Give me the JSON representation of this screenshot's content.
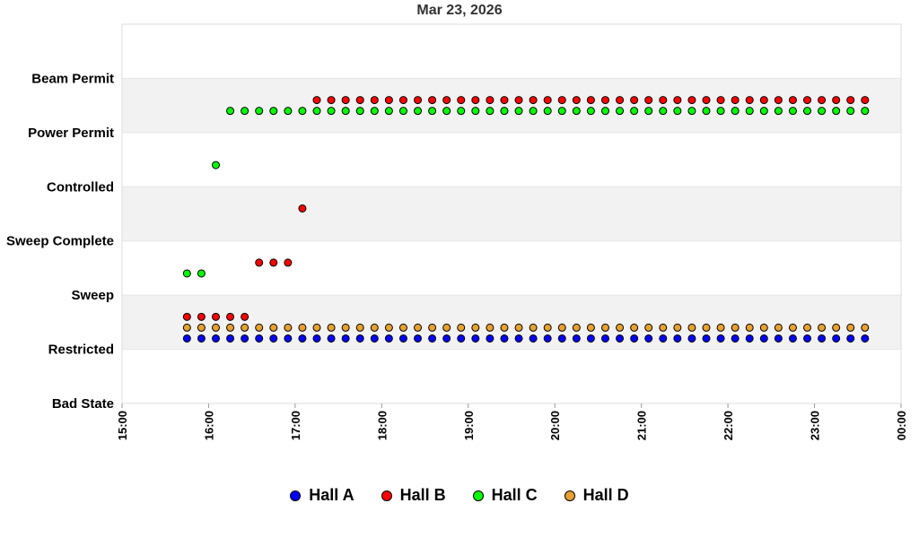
{
  "chart_data": {
    "type": "scatter",
    "title": "Mar 23, 2026",
    "y_categories": [
      "Bad State",
      "Restricted",
      "Sweep",
      "Sweep Complete",
      "Controlled",
      "Power Permit",
      "Beam Permit"
    ],
    "x_ticks": [
      "15:00",
      "16:00",
      "17:00",
      "18:00",
      "19:00",
      "20:00",
      "21:00",
      "22:00",
      "23:00",
      "00:00"
    ],
    "x_range": [
      "15:00",
      "00:00"
    ],
    "legend_position": "bottom",
    "series": [
      {
        "name": "Hall A",
        "color": "#0000ff",
        "segments": [
          {
            "start": "15:45",
            "end": "23:35",
            "step_min": 10,
            "level": 1.2
          }
        ]
      },
      {
        "name": "Hall B",
        "color": "#ff0000",
        "segments": [
          {
            "start": "15:45",
            "end": "16:25",
            "step_min": 10,
            "level": 1.6
          },
          {
            "start": "16:35",
            "end": "16:55",
            "step_min": 10,
            "level": 2.6
          },
          {
            "start": "17:05",
            "end": "17:05",
            "step_min": 10,
            "level": 3.6
          },
          {
            "start": "17:15",
            "end": "23:35",
            "step_min": 10,
            "level": 5.6
          }
        ]
      },
      {
        "name": "Hall C",
        "color": "#00ff00",
        "segments": [
          {
            "start": "15:45",
            "end": "15:55",
            "step_min": 10,
            "level": 2.4
          },
          {
            "start": "16:05",
            "end": "16:05",
            "step_min": 10,
            "level": 4.4
          },
          {
            "start": "16:15",
            "end": "23:35",
            "step_min": 10,
            "level": 5.4
          }
        ]
      },
      {
        "name": "Hall D",
        "color": "#e8a030",
        "segments": [
          {
            "start": "15:45",
            "end": "23:35",
            "step_min": 10,
            "level": 1.4
          }
        ]
      }
    ]
  }
}
